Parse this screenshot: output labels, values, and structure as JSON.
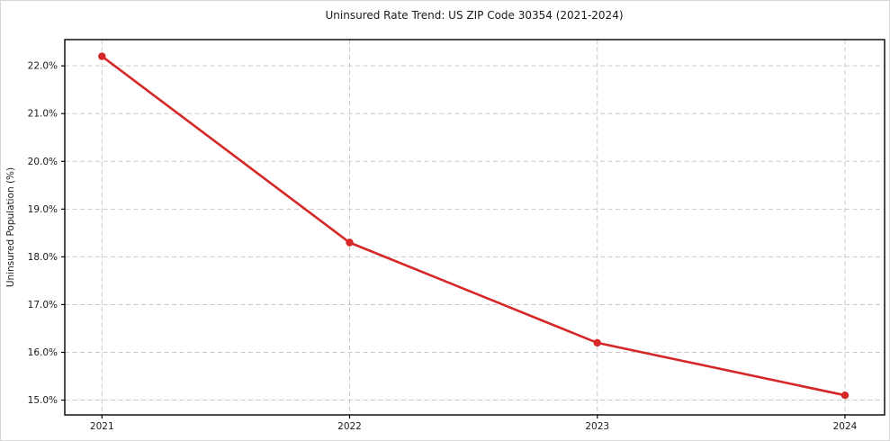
{
  "figure": {
    "background": "#ffffff",
    "border_color": "#d6d6d6"
  },
  "chart_data": {
    "type": "line",
    "title": "Uninsured Rate Trend: US ZIP Code 30354 (2021-2024)",
    "xlabel": "",
    "ylabel": "Uninsured Population (%)",
    "x": [
      2021,
      2022,
      2023,
      2024
    ],
    "x_tick_labels": [
      "2021",
      "2022",
      "2023",
      "2024"
    ],
    "series": [
      {
        "name": "Uninsured rate",
        "color": "#d62728",
        "values": [
          22.2,
          18.3,
          16.2,
          15.1
        ]
      }
    ],
    "y_ticks": [
      15,
      16,
      17,
      18,
      19,
      20,
      21,
      22
    ],
    "y_tick_labels": [
      "15.0%",
      "16.0%",
      "17.0%",
      "18.0%",
      "19.0%",
      "20.0%",
      "21.0%",
      "22.0%"
    ],
    "xlim": [
      2020.85,
      2024.16
    ],
    "ylim": [
      14.69,
      22.55
    ],
    "grid": true,
    "grid_color": "#c9c9c9",
    "grid_dash": "5 3.5",
    "legend": "none",
    "axis_color": "#000000",
    "text_color": "#1a1a1a",
    "line_width": 2.6,
    "marker_radius": 4.2
  }
}
